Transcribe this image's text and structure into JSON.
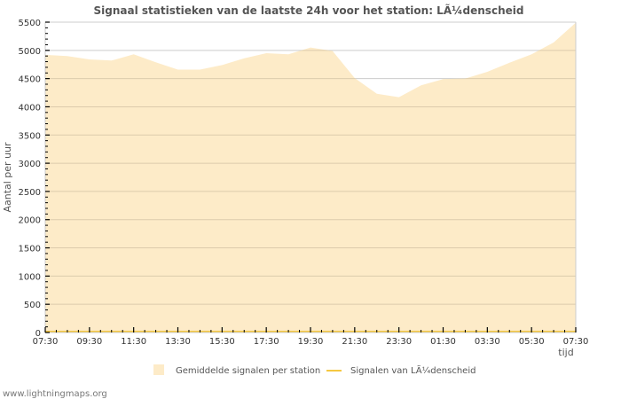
{
  "chart_data": {
    "type": "area",
    "title": "Signaal statistieken van de laatste 24h voor het station: LÃ¼denscheid",
    "xlabel": "tijd",
    "ylabel": "Aantal per uur",
    "ylim": [
      0,
      5500
    ],
    "yticks": [
      0,
      500,
      1000,
      1500,
      2000,
      2500,
      3000,
      3500,
      4000,
      4500,
      5000,
      5500
    ],
    "xtick_labels": [
      "07:30",
      "09:30",
      "11:30",
      "13:30",
      "15:30",
      "17:30",
      "19:30",
      "21:30",
      "23:30",
      "01:30",
      "03:30",
      "05:30",
      "07:30"
    ],
    "grid": true,
    "legend_position": "bottom",
    "x": [
      "07:30",
      "08:30",
      "09:30",
      "10:30",
      "11:30",
      "12:30",
      "13:30",
      "14:30",
      "15:30",
      "16:30",
      "17:30",
      "18:30",
      "19:30",
      "20:30",
      "21:30",
      "22:30",
      "23:30",
      "00:30",
      "01:30",
      "02:30",
      "03:30",
      "04:30",
      "05:30",
      "06:30",
      "07:30"
    ],
    "series": [
      {
        "name": "Gemiddelde signalen per station",
        "style": "area",
        "color": "#fdebc8",
        "values": [
          4920,
          4900,
          4840,
          4820,
          4930,
          4790,
          4660,
          4660,
          4740,
          4860,
          4950,
          4930,
          5050,
          4990,
          4510,
          4230,
          4170,
          4380,
          4490,
          4500,
          4620,
          4780,
          4930,
          5140,
          5490
        ]
      },
      {
        "name": "Signalen van LÃ¼denscheid",
        "style": "line",
        "color": "#f5c842",
        "values": [
          0,
          0,
          0,
          0,
          0,
          0,
          0,
          0,
          0,
          0,
          0,
          0,
          0,
          0,
          0,
          0,
          0,
          0,
          0,
          0,
          0,
          0,
          0,
          0,
          0
        ]
      }
    ]
  },
  "footer": "www.lightningmaps.org",
  "colors": {
    "area_fill": "#fdebc8",
    "line": "#f5c842",
    "grid": "#cccccc",
    "grid_on_area": "#d8c8a8"
  }
}
